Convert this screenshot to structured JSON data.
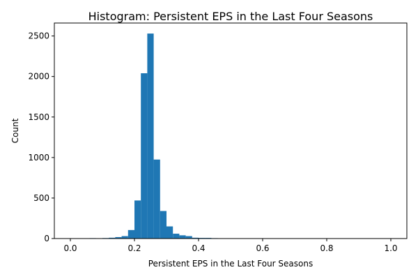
{
  "chart_data": {
    "type": "bar",
    "title": "Histogram:  Persistent EPS in the Last Four Seasons",
    "xlabel": "Persistent EPS in the Last Four Seasons",
    "ylabel": "Count",
    "xlim": [
      -0.05,
      1.05
    ],
    "ylim": [
      0,
      2660
    ],
    "xticks": [
      0.0,
      0.2,
      0.4,
      0.6,
      0.8,
      1.0
    ],
    "xtick_labels": [
      "0.0",
      "0.2",
      "0.4",
      "0.6",
      "0.8",
      "1.0"
    ],
    "yticks": [
      0,
      500,
      1000,
      1500,
      2000,
      2500
    ],
    "ytick_labels": [
      "0",
      "500",
      "1000",
      "1500",
      "2000",
      "2500"
    ],
    "bar_color": "#1f77b4",
    "grid": false,
    "bins": {
      "edges": [
        0.0,
        0.02,
        0.04,
        0.06,
        0.08,
        0.1,
        0.12,
        0.14,
        0.16,
        0.18,
        0.2,
        0.22,
        0.24,
        0.26,
        0.28,
        0.3,
        0.32,
        0.34,
        0.36,
        0.38,
        0.4,
        0.42,
        0.44,
        0.46,
        0.48,
        0.5,
        0.52,
        0.54,
        0.56,
        0.58,
        0.6,
        0.62,
        0.64,
        0.66,
        0.68,
        0.7,
        0.72,
        0.74,
        0.76,
        0.78,
        0.8,
        0.82,
        0.84,
        0.86,
        0.88,
        0.9,
        0.92,
        0.94,
        0.96,
        0.98,
        1.0
      ],
      "counts": [
        2,
        0,
        1,
        5,
        1,
        6,
        10,
        18,
        30,
        105,
        470,
        2040,
        2530,
        975,
        340,
        150,
        60,
        40,
        30,
        10,
        8,
        8,
        5,
        3,
        0,
        0,
        0,
        3,
        0,
        0,
        0,
        0,
        0,
        0,
        0,
        0,
        0,
        0,
        3,
        0,
        0,
        0,
        0,
        0,
        0,
        0,
        0,
        0,
        0,
        0
      ]
    }
  }
}
